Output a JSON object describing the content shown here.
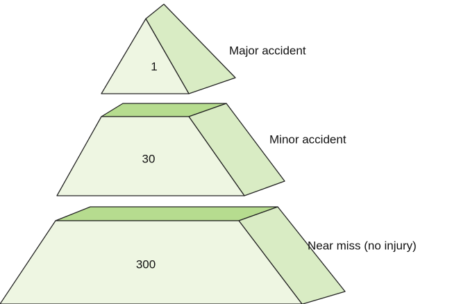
{
  "levels": [
    {
      "value": 1,
      "label": "Major accident"
    },
    {
      "value": 30,
      "label": "Minor accident"
    },
    {
      "value": 300,
      "label": "Near miss (no injury)"
    }
  ]
}
